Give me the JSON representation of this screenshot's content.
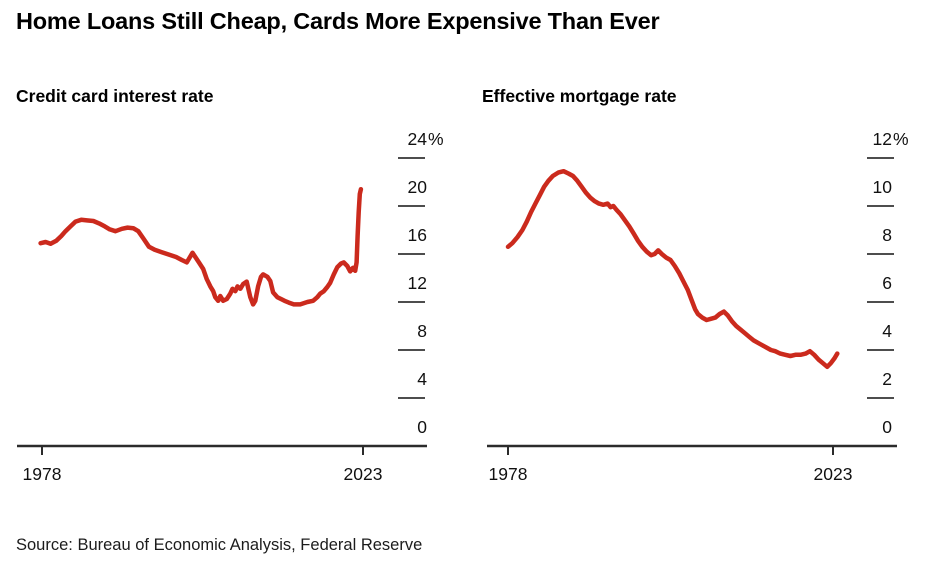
{
  "title": "Home Loans Still Cheap, Cards More Expensive Than Ever",
  "source": "Source: Bureau of Economic Analysis, Federal Reserve",
  "colors": {
    "line_red": "#cb2a1d",
    "axis": "#2b2b2b",
    "tick_dash": "#4d4d4d",
    "tick_text": "#111111"
  },
  "chart_data": [
    {
      "type": "line",
      "title": "Credit card interest rate",
      "xlabel": "",
      "ylabel": "",
      "grid": "off",
      "legend": "none",
      "xlim": [
        1978,
        2023
      ],
      "ylim": [
        0,
        24
      ],
      "x_tick_years": [
        1978,
        2023
      ],
      "x_tick_labels": [
        "1978",
        "2023"
      ],
      "y_ticks": [
        0,
        4,
        8,
        12,
        16,
        20,
        24
      ],
      "y_top_label": "24%",
      "y_unit_suffix": "%",
      "line_color": "#cb2a1d",
      "series": [
        {
          "name": "Credit card interest rate (%)",
          "points": [
            [
              1977.8,
              16.9
            ],
            [
              1978.5,
              17.0
            ],
            [
              1979.2,
              16.85
            ],
            [
              1980.0,
              17.1
            ],
            [
              1980.7,
              17.5
            ],
            [
              1981.3,
              17.9
            ],
            [
              1982.0,
              18.3
            ],
            [
              1982.7,
              18.7
            ],
            [
              1983.5,
              18.85
            ],
            [
              1984.3,
              18.8
            ],
            [
              1985.2,
              18.75
            ],
            [
              1986.0,
              18.55
            ],
            [
              1986.8,
              18.3
            ],
            [
              1987.5,
              18.05
            ],
            [
              1988.3,
              17.9
            ],
            [
              1989.2,
              18.1
            ],
            [
              1990.0,
              18.2
            ],
            [
              1990.8,
              18.15
            ],
            [
              1991.5,
              17.9
            ],
            [
              1992.2,
              17.3
            ],
            [
              1993.0,
              16.6
            ],
            [
              1993.8,
              16.35
            ],
            [
              1994.8,
              16.15
            ],
            [
              1995.8,
              15.95
            ],
            [
              1996.8,
              15.75
            ],
            [
              1997.6,
              15.5
            ],
            [
              1998.3,
              15.3
            ],
            [
              1999.1,
              16.1
            ],
            [
              2000.0,
              15.3
            ],
            [
              2000.6,
              14.75
            ],
            [
              2001.1,
              13.9
            ],
            [
              2001.6,
              13.3
            ],
            [
              2002.0,
              12.9
            ],
            [
              2002.3,
              12.4
            ],
            [
              2002.7,
              12.1
            ],
            [
              2003.0,
              12.5
            ],
            [
              2003.4,
              12.1
            ],
            [
              2003.9,
              12.25
            ],
            [
              2004.4,
              12.7
            ],
            [
              2004.7,
              13.1
            ],
            [
              2005.1,
              12.9
            ],
            [
              2005.4,
              13.3
            ],
            [
              2005.8,
              13.1
            ],
            [
              2006.2,
              13.5
            ],
            [
              2006.7,
              13.7
            ],
            [
              2007.2,
              12.4
            ],
            [
              2007.6,
              11.8
            ],
            [
              2007.9,
              12.1
            ],
            [
              2008.3,
              13.3
            ],
            [
              2008.7,
              14.1
            ],
            [
              2009.0,
              14.3
            ],
            [
              2009.6,
              14.1
            ],
            [
              2010.0,
              13.75
            ],
            [
              2010.4,
              12.8
            ],
            [
              2011.0,
              12.4
            ],
            [
              2011.5,
              12.25
            ],
            [
              2012.0,
              12.1
            ],
            [
              2012.6,
              11.95
            ],
            [
              2013.3,
              11.8
            ],
            [
              2014.2,
              11.8
            ],
            [
              2015.2,
              12.0
            ],
            [
              2016.0,
              12.1
            ],
            [
              2016.6,
              12.4
            ],
            [
              2017.0,
              12.7
            ],
            [
              2017.5,
              12.9
            ],
            [
              2018.0,
              13.25
            ],
            [
              2018.4,
              13.6
            ],
            [
              2018.9,
              14.3
            ],
            [
              2019.4,
              14.9
            ],
            [
              2019.9,
              15.2
            ],
            [
              2020.3,
              15.3
            ],
            [
              2020.8,
              15.0
            ],
            [
              2021.2,
              14.55
            ],
            [
              2021.6,
              14.85
            ],
            [
              2021.9,
              14.6
            ],
            [
              2022.1,
              15.3
            ],
            [
              2022.25,
              17.5
            ],
            [
              2022.4,
              19.5
            ],
            [
              2022.55,
              21.0
            ],
            [
              2022.7,
              21.4
            ]
          ]
        }
      ]
    },
    {
      "type": "line",
      "title": "Effective mortgage rate",
      "xlabel": "",
      "ylabel": "",
      "grid": "off",
      "legend": "none",
      "xlim": [
        1978,
        2023
      ],
      "ylim": [
        0,
        12
      ],
      "x_tick_years": [
        1978,
        2023
      ],
      "x_tick_labels": [
        "1978",
        "2023"
      ],
      "y_ticks": [
        0,
        2,
        4,
        6,
        8,
        10,
        12
      ],
      "y_top_label": "12%",
      "y_unit_suffix": "%",
      "line_color": "#cb2a1d",
      "series": [
        {
          "name": "Effective mortgage rate (%)",
          "points": [
            [
              1978.0,
              8.3
            ],
            [
              1978.6,
              8.45
            ],
            [
              1979.3,
              8.7
            ],
            [
              1980.0,
              9.0
            ],
            [
              1980.6,
              9.35
            ],
            [
              1981.2,
              9.75
            ],
            [
              1981.8,
              10.1
            ],
            [
              1982.4,
              10.45
            ],
            [
              1983.0,
              10.8
            ],
            [
              1983.6,
              11.05
            ],
            [
              1984.2,
              11.25
            ],
            [
              1985.0,
              11.4
            ],
            [
              1985.7,
              11.45
            ],
            [
              1986.4,
              11.35
            ],
            [
              1987.0,
              11.25
            ],
            [
              1987.6,
              11.05
            ],
            [
              1988.2,
              10.8
            ],
            [
              1988.8,
              10.55
            ],
            [
              1989.4,
              10.35
            ],
            [
              1990.0,
              10.2
            ],
            [
              1990.6,
              10.1
            ],
            [
              1991.2,
              10.05
            ],
            [
              1991.8,
              10.1
            ],
            [
              1992.2,
              9.95
            ],
            [
              1992.6,
              10.0
            ],
            [
              1993.0,
              9.85
            ],
            [
              1993.6,
              9.65
            ],
            [
              1994.2,
              9.4
            ],
            [
              1994.8,
              9.15
            ],
            [
              1995.4,
              8.85
            ],
            [
              1996.0,
              8.55
            ],
            [
              1996.6,
              8.3
            ],
            [
              1997.2,
              8.1
            ],
            [
              1997.8,
              7.95
            ],
            [
              1998.3,
              8.0
            ],
            [
              1998.8,
              8.15
            ],
            [
              1999.3,
              8.0
            ],
            [
              1999.9,
              7.85
            ],
            [
              2000.5,
              7.75
            ],
            [
              2001.1,
              7.5
            ],
            [
              2001.7,
              7.2
            ],
            [
              2002.3,
              6.85
            ],
            [
              2002.9,
              6.5
            ],
            [
              2003.4,
              6.1
            ],
            [
              2003.9,
              5.7
            ],
            [
              2004.3,
              5.5
            ],
            [
              2004.9,
              5.35
            ],
            [
              2005.5,
              5.25
            ],
            [
              2006.1,
              5.3
            ],
            [
              2006.7,
              5.35
            ],
            [
              2007.3,
              5.5
            ],
            [
              2007.9,
              5.6
            ],
            [
              2008.4,
              5.45
            ],
            [
              2009.0,
              5.2
            ],
            [
              2009.6,
              5.0
            ],
            [
              2010.2,
              4.85
            ],
            [
              2010.8,
              4.7
            ],
            [
              2011.4,
              4.55
            ],
            [
              2012.0,
              4.4
            ],
            [
              2012.6,
              4.3
            ],
            [
              2013.2,
              4.2
            ],
            [
              2013.8,
              4.1
            ],
            [
              2014.4,
              4.0
            ],
            [
              2015.0,
              3.95
            ],
            [
              2015.7,
              3.85
            ],
            [
              2016.4,
              3.8
            ],
            [
              2017.1,
              3.75
            ],
            [
              2017.8,
              3.8
            ],
            [
              2018.5,
              3.8
            ],
            [
              2019.2,
              3.85
            ],
            [
              2019.8,
              3.95
            ],
            [
              2020.4,
              3.8
            ],
            [
              2021.0,
              3.6
            ],
            [
              2021.6,
              3.45
            ],
            [
              2022.2,
              3.3
            ],
            [
              2022.7,
              3.45
            ],
            [
              2023.2,
              3.65
            ],
            [
              2023.6,
              3.85
            ]
          ]
        }
      ]
    }
  ]
}
